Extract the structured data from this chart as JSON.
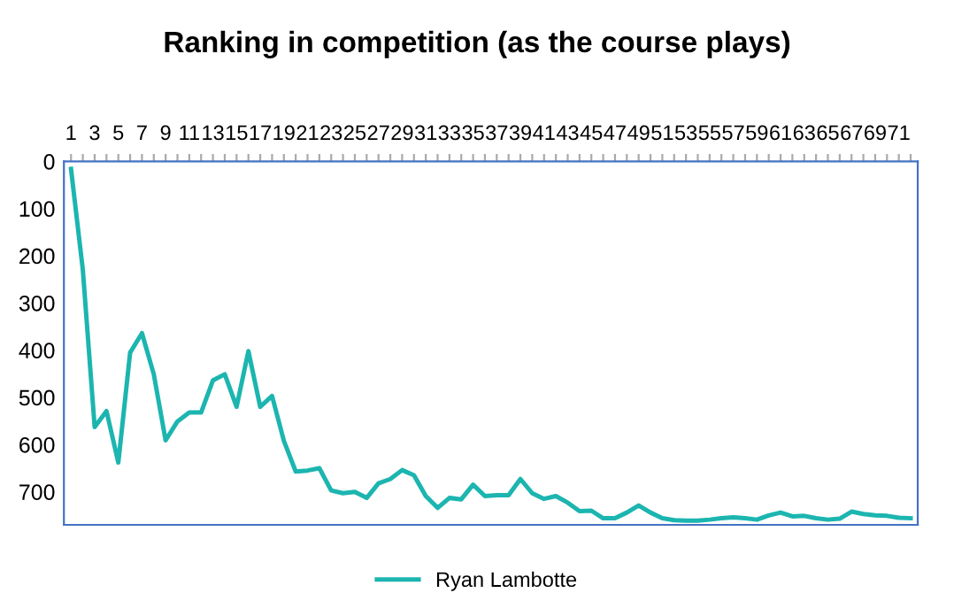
{
  "chart_data": {
    "type": "line",
    "title": "Ranking in competition (as the course plays)",
    "categories": [
      "1",
      null,
      "3",
      null,
      "5",
      null,
      "7",
      null,
      "9",
      null,
      "11",
      null,
      "13",
      null,
      "15",
      null,
      "17",
      null,
      "19",
      null,
      "21",
      null,
      "23",
      null,
      "25",
      null,
      "27",
      null,
      "29",
      null,
      "31",
      null,
      "33",
      null,
      "35",
      null,
      "37",
      null,
      "39",
      null,
      "41",
      null,
      "43",
      null,
      "45",
      null,
      "47",
      null,
      "49",
      null,
      "51",
      null,
      "53",
      null,
      "55",
      null,
      "57",
      null,
      "59",
      null,
      "61",
      null,
      "63",
      null,
      "65",
      null,
      "67",
      null,
      "69",
      null,
      "71",
      null
    ],
    "series": [
      {
        "name": "Ryan Lambotte",
        "color": "#1cb5b0",
        "values": [
          16,
          230,
          563,
          529,
          638,
          405,
          364,
          451,
          591,
          551,
          532,
          532,
          464,
          451,
          520,
          402,
          520,
          497,
          592,
          657,
          655,
          650,
          697,
          703,
          700,
          713,
          682,
          673,
          654,
          665,
          709,
          734,
          713,
          716,
          685,
          709,
          707,
          707,
          673,
          703,
          715,
          709,
          723,
          741,
          740,
          756,
          756,
          744,
          729,
          744,
          756,
          760,
          761,
          761,
          759,
          756,
          754,
          756,
          759,
          750,
          744,
          752,
          751,
          756,
          759,
          757,
          742,
          747,
          750,
          751,
          755,
          756
        ]
      }
    ],
    "ylim": [
      770,
      0
    ],
    "yticks": [
      0,
      100,
      200,
      300,
      400,
      500,
      600,
      700
    ],
    "grid": false,
    "legend": "bottom",
    "marker": "none",
    "line_style": "solid"
  }
}
